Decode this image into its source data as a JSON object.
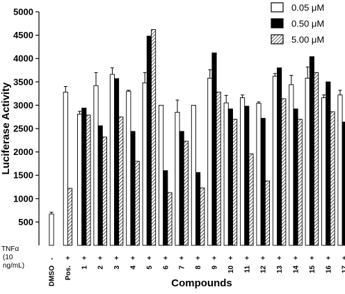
{
  "chart_data": {
    "type": "bar",
    "ylabel": "Luciferase Activity",
    "xlabel": "Compounds",
    "ylim": [
      0,
      5000
    ],
    "yticks": [
      500,
      1000,
      1500,
      2000,
      2500,
      3000,
      3500,
      4000,
      4500,
      5000
    ],
    "grid": false,
    "legend_position": "top-right",
    "treatment_label_lines": [
      "TNFα",
      "(10",
      "ng/mL)"
    ],
    "categories": [
      "DMSO",
      "Pos.",
      "1",
      "2",
      "3",
      "4",
      "5",
      "6",
      "7",
      "8",
      "9",
      "10",
      "11",
      "12",
      "13",
      "14",
      "15",
      "16",
      "17"
    ],
    "treatment": [
      "-",
      "+",
      "+",
      "+",
      "+",
      "+",
      "+",
      "+",
      "+",
      "+",
      "+",
      "+",
      "+",
      "+",
      "+",
      "+",
      "+",
      "+",
      "+"
    ],
    "series": [
      {
        "name": "0.05 μM",
        "style": "open",
        "values": [
          670,
          3280,
          2810,
          3420,
          3660,
          3300,
          3480,
          3000,
          2850,
          3000,
          3580,
          3050,
          3160,
          3040,
          3620,
          3440,
          3580,
          3160,
          3220
        ],
        "errors": [
          40,
          120,
          60,
          280,
          140,
          20,
          220,
          0,
          260,
          0,
          180,
          160,
          60,
          30,
          60,
          200,
          240,
          60,
          100
        ]
      },
      {
        "name": "0.50 μM",
        "style": "solid",
        "values": [
          null,
          null,
          2940,
          2560,
          3570,
          2440,
          4480,
          1600,
          2440,
          1560,
          4120,
          2920,
          2980,
          2720,
          3800,
          2920,
          4040,
          3500,
          2640
        ]
      },
      {
        "name": "5.00 μM",
        "style": "hatched",
        "values": [
          null,
          1220,
          2790,
          2320,
          2750,
          1800,
          4620,
          1130,
          2230,
          1230,
          3280,
          2700,
          1960,
          1380,
          3140,
          2700,
          3700,
          2860,
          2400
        ]
      }
    ]
  }
}
